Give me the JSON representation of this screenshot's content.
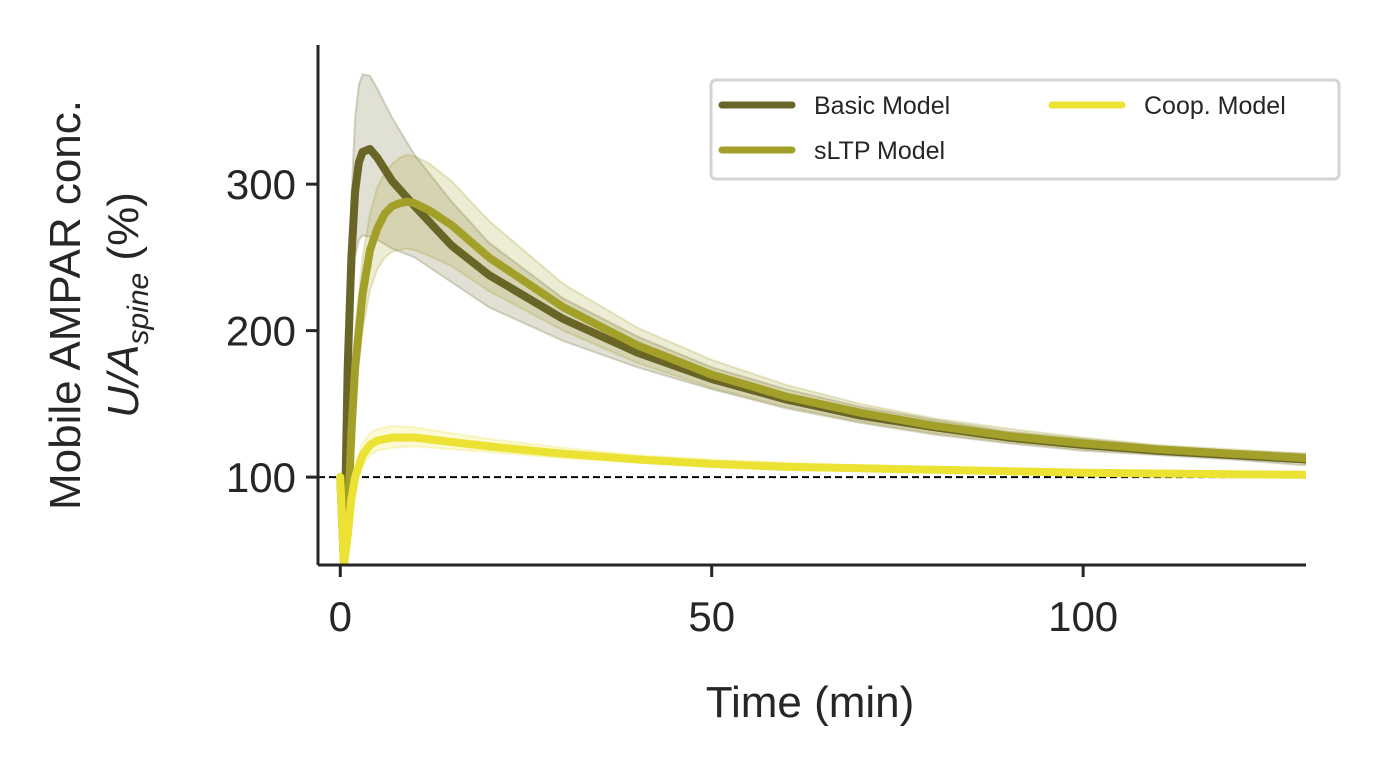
{
  "chart_data": {
    "type": "line",
    "title": "",
    "xlabel": "Time (min)",
    "ylabel_line1": "Mobile AMPAR conc.",
    "ylabel_line2_main": "U/A",
    "ylabel_line2_sub": "spine",
    "ylabel_line2_unit": " (%)",
    "xlim": [
      -3,
      130
    ],
    "ylim": [
      40,
      395
    ],
    "xticks": [
      0,
      50,
      100
    ],
    "yticks": [
      100,
      200,
      300
    ],
    "reference_line": {
      "y": 100,
      "style": "dashed",
      "color": "#000000"
    },
    "legend": {
      "placement": "top-right",
      "columns": 2
    },
    "series": [
      {
        "name": "Basic Model",
        "color": "#686526",
        "x": [
          0,
          0.5,
          1,
          1.5,
          2,
          2.5,
          3,
          4,
          5,
          7,
          10,
          15,
          20,
          30,
          40,
          50,
          60,
          70,
          80,
          90,
          100,
          110,
          120,
          130
        ],
        "y": [
          100,
          40,
          175,
          250,
          295,
          315,
          322,
          324,
          318,
          302,
          285,
          258,
          238,
          208,
          185,
          167,
          153,
          142,
          134,
          127,
          122,
          118,
          115,
          112
        ],
        "upper": [
          100,
          60,
          200,
          290,
          345,
          368,
          375,
          374,
          365,
          345,
          320,
          288,
          260,
          222,
          196,
          175,
          160,
          148,
          139,
          131,
          126,
          121,
          118,
          116
        ],
        "lower": [
          100,
          30,
          150,
          215,
          250,
          262,
          265,
          264,
          262,
          256,
          250,
          233,
          216,
          193,
          175,
          160,
          147,
          137,
          129,
          123,
          118,
          115,
          112,
          108
        ]
      },
      {
        "name": "sLTP Model",
        "color": "#a3a02a",
        "x": [
          0,
          0.5,
          1,
          1.5,
          2,
          3,
          4,
          5,
          6,
          7,
          8,
          9,
          10,
          12,
          15,
          20,
          30,
          40,
          50,
          60,
          70,
          80,
          90,
          100,
          110,
          120,
          130
        ],
        "y": [
          100,
          40,
          70,
          130,
          175,
          225,
          255,
          270,
          280,
          285,
          287,
          288,
          287,
          282,
          272,
          250,
          216,
          190,
          170,
          155,
          144,
          135,
          128,
          123,
          119,
          116,
          113
        ],
        "upper": [
          100,
          50,
          90,
          155,
          200,
          250,
          280,
          298,
          308,
          314,
          318,
          320,
          319,
          314,
          302,
          275,
          232,
          202,
          180,
          163,
          150,
          140,
          133,
          127,
          122,
          119,
          116
        ],
        "lower": [
          100,
          35,
          60,
          112,
          155,
          200,
          228,
          242,
          250,
          254,
          255,
          256,
          255,
          251,
          244,
          227,
          200,
          178,
          161,
          148,
          138,
          130,
          124,
          119,
          116,
          113,
          110
        ]
      },
      {
        "name": "Coop. Model",
        "color": "#ece233",
        "x": [
          0,
          0.5,
          1,
          1.5,
          2,
          3,
          4,
          5,
          7,
          10,
          15,
          20,
          30,
          40,
          50,
          60,
          70,
          80,
          90,
          100,
          110,
          120,
          130
        ],
        "y": [
          100,
          40,
          60,
          85,
          100,
          115,
          122,
          125,
          127,
          127,
          124,
          121,
          116,
          112,
          109,
          107,
          106,
          105,
          104,
          103,
          102.5,
          102,
          101.5
        ],
        "upper": [
          100,
          45,
          68,
          93,
          108,
          123,
          130,
          133,
          135,
          134,
          130,
          126,
          120,
          115,
          112,
          110,
          108,
          107,
          106,
          105,
          104,
          103,
          102.5
        ],
        "lower": [
          100,
          38,
          55,
          78,
          93,
          108,
          115,
          118,
          120,
          121,
          119,
          117,
          113,
          110,
          107,
          105.5,
          104.5,
          103.5,
          102.5,
          102,
          101.5,
          101,
          100.5
        ]
      }
    ]
  }
}
